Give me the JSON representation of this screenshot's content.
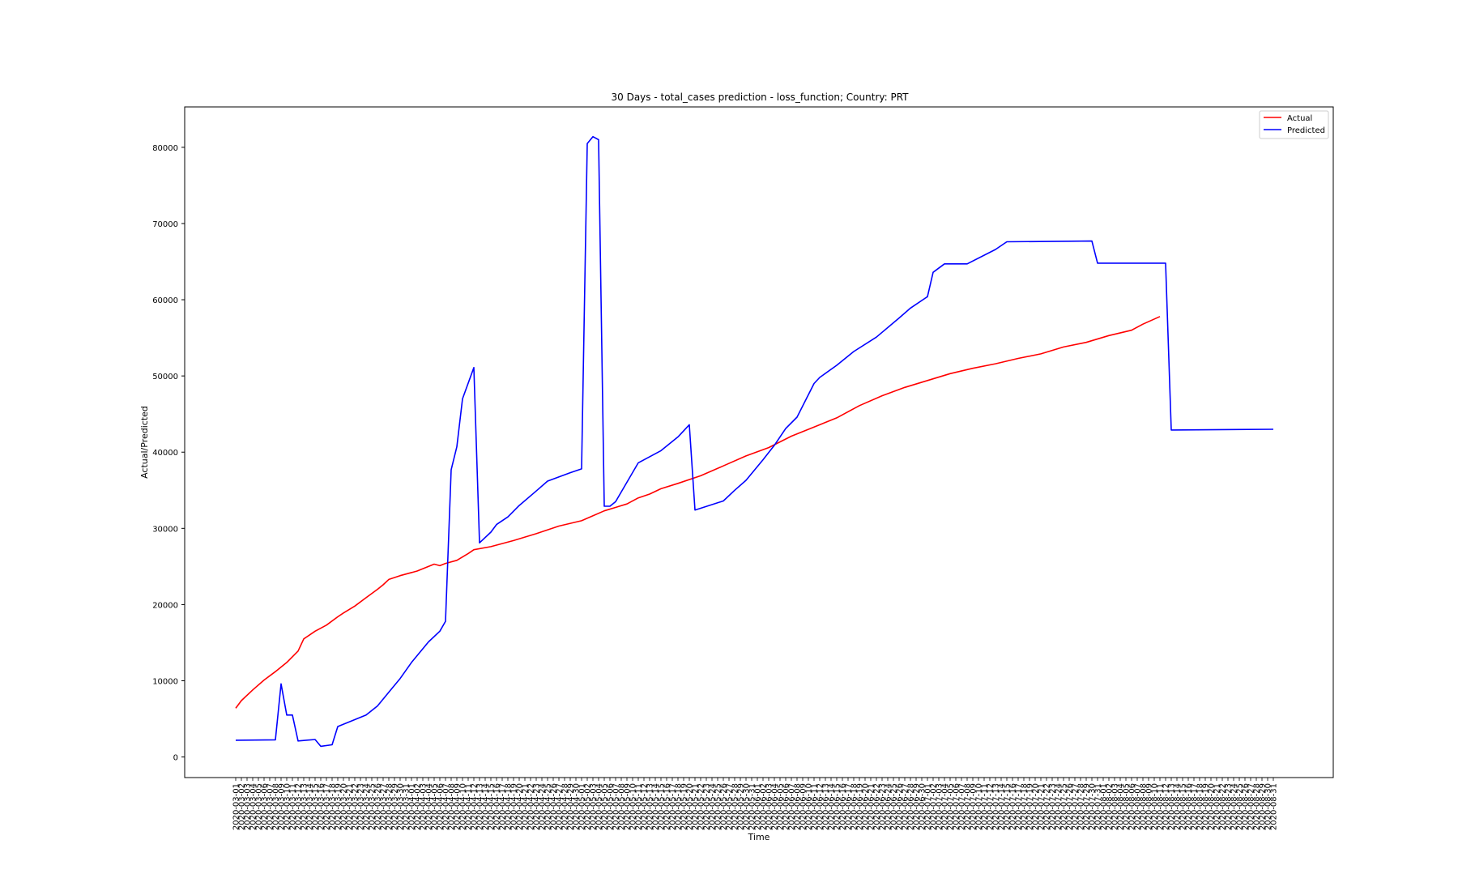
{
  "chart_data": {
    "type": "line",
    "title": "30 Days - total_cases prediction - loss_function; Country: PRT",
    "xlabel": "Time",
    "ylabel": "Actual/Predicted",
    "x_start_date": "2020-03-01",
    "x_end_date": "2020-08-31",
    "ylim": [
      -2700,
      85300
    ],
    "y_ticks": [
      0,
      10000,
      20000,
      30000,
      40000,
      50000,
      60000,
      70000,
      80000
    ],
    "grid": false,
    "legend": "top-right",
    "series": [
      {
        "name": "Actual",
        "color": "#ff0000",
        "points": [
          [
            "2020-03-01",
            6400
          ],
          [
            "2020-03-02",
            7400
          ],
          [
            "2020-03-04",
            8800
          ],
          [
            "2020-03-06",
            10100
          ],
          [
            "2020-03-08",
            11200
          ],
          [
            "2020-03-10",
            12400
          ],
          [
            "2020-03-12",
            13900
          ],
          [
            "2020-03-13",
            15500
          ],
          [
            "2020-03-15",
            16500
          ],
          [
            "2020-03-17",
            17300
          ],
          [
            "2020-03-19",
            18400
          ],
          [
            "2020-03-20",
            18900
          ],
          [
            "2020-03-22",
            19800
          ],
          [
            "2020-03-24",
            20900
          ],
          [
            "2020-03-26",
            22000
          ],
          [
            "2020-03-27",
            22600
          ],
          [
            "2020-03-28",
            23300
          ],
          [
            "2020-03-30",
            23800
          ],
          [
            "2020-04-02",
            24400
          ],
          [
            "2020-04-05",
            25300
          ],
          [
            "2020-04-06",
            25100
          ],
          [
            "2020-04-07",
            25400
          ],
          [
            "2020-04-09",
            25800
          ],
          [
            "2020-04-11",
            26700
          ],
          [
            "2020-04-12",
            27200
          ],
          [
            "2020-04-15",
            27600
          ],
          [
            "2020-04-19",
            28400
          ],
          [
            "2020-04-23",
            29300
          ],
          [
            "2020-04-27",
            30300
          ],
          [
            "2020-05-01",
            31000
          ],
          [
            "2020-05-05",
            32300
          ],
          [
            "2020-05-09",
            33200
          ],
          [
            "2020-05-11",
            34000
          ],
          [
            "2020-05-13",
            34500
          ],
          [
            "2020-05-15",
            35200
          ],
          [
            "2020-05-18",
            35900
          ],
          [
            "2020-05-22",
            36900
          ],
          [
            "2020-05-26",
            38200
          ],
          [
            "2020-05-30",
            39500
          ],
          [
            "2020-06-03",
            40600
          ],
          [
            "2020-06-07",
            42100
          ],
          [
            "2020-06-11",
            43300
          ],
          [
            "2020-06-15",
            44500
          ],
          [
            "2020-06-19",
            46100
          ],
          [
            "2020-06-23",
            47400
          ],
          [
            "2020-06-27",
            48500
          ],
          [
            "2020-07-01",
            49400
          ],
          [
            "2020-07-05",
            50300
          ],
          [
            "2020-07-09",
            51000
          ],
          [
            "2020-07-13",
            51600
          ],
          [
            "2020-07-17",
            52300
          ],
          [
            "2020-07-21",
            52900
          ],
          [
            "2020-07-25",
            53800
          ],
          [
            "2020-07-29",
            54400
          ],
          [
            "2020-08-02",
            55300
          ],
          [
            "2020-08-06",
            56000
          ],
          [
            "2020-08-08",
            56800
          ],
          [
            "2020-08-11",
            57800
          ]
        ]
      },
      {
        "name": "Predicted",
        "color": "#0000ff",
        "points": [
          [
            "2020-03-01",
            2200
          ],
          [
            "2020-03-08",
            2250
          ],
          [
            "2020-03-09",
            9600
          ],
          [
            "2020-03-10",
            5500
          ],
          [
            "2020-03-11",
            5500
          ],
          [
            "2020-03-12",
            2100
          ],
          [
            "2020-03-15",
            2300
          ],
          [
            "2020-03-16",
            1400
          ],
          [
            "2020-03-18",
            1600
          ],
          [
            "2020-03-19",
            4000
          ],
          [
            "2020-03-24",
            5500
          ],
          [
            "2020-03-26",
            6700
          ],
          [
            "2020-03-28",
            8500
          ],
          [
            "2020-03-30",
            10300
          ],
          [
            "2020-04-01",
            12400
          ],
          [
            "2020-04-04",
            15100
          ],
          [
            "2020-04-06",
            16500
          ],
          [
            "2020-04-07",
            17800
          ],
          [
            "2020-04-08",
            37700
          ],
          [
            "2020-04-09",
            40700
          ],
          [
            "2020-04-10",
            47000
          ],
          [
            "2020-04-12",
            51100
          ],
          [
            "2020-04-13",
            28100
          ],
          [
            "2020-04-15",
            29500
          ],
          [
            "2020-04-16",
            30500
          ],
          [
            "2020-04-18",
            31500
          ],
          [
            "2020-04-20",
            33000
          ],
          [
            "2020-04-23",
            34900
          ],
          [
            "2020-04-25",
            36200
          ],
          [
            "2020-04-29",
            37300
          ],
          [
            "2020-05-01",
            37800
          ],
          [
            "2020-05-02",
            80500
          ],
          [
            "2020-05-03",
            81400
          ],
          [
            "2020-05-04",
            81000
          ],
          [
            "2020-05-05",
            32900
          ],
          [
            "2020-05-06",
            32900
          ],
          [
            "2020-05-07",
            33500
          ],
          [
            "2020-05-11",
            38600
          ],
          [
            "2020-05-13",
            39400
          ],
          [
            "2020-05-15",
            40200
          ],
          [
            "2020-05-18",
            42000
          ],
          [
            "2020-05-20",
            43600
          ],
          [
            "2020-05-21",
            32400
          ],
          [
            "2020-05-26",
            33600
          ],
          [
            "2020-05-28",
            35000
          ],
          [
            "2020-05-30",
            36300
          ],
          [
            "2020-06-02",
            39000
          ],
          [
            "2020-06-04",
            40900
          ],
          [
            "2020-06-06",
            43100
          ],
          [
            "2020-06-08",
            44600
          ],
          [
            "2020-06-11",
            49000
          ],
          [
            "2020-06-12",
            49800
          ],
          [
            "2020-06-15",
            51400
          ],
          [
            "2020-06-18",
            53200
          ],
          [
            "2020-06-22",
            55100
          ],
          [
            "2020-06-26",
            57600
          ],
          [
            "2020-06-28",
            58900
          ],
          [
            "2020-07-01",
            60400
          ],
          [
            "2020-07-02",
            63600
          ],
          [
            "2020-07-04",
            64700
          ],
          [
            "2020-07-08",
            64700
          ],
          [
            "2020-07-13",
            66600
          ],
          [
            "2020-07-15",
            67600
          ],
          [
            "2020-07-30",
            67700
          ],
          [
            "2020-07-31",
            64800
          ],
          [
            "2020-08-12",
            64800
          ],
          [
            "2020-08-13",
            42900
          ],
          [
            "2020-08-31",
            43000
          ]
        ]
      }
    ]
  }
}
